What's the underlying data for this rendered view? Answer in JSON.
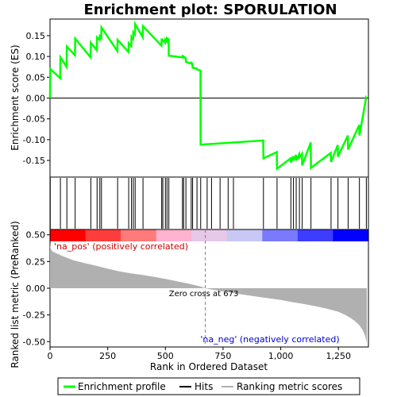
{
  "chart_data": {
    "type": "line",
    "title": "Enrichment plot: SPORULATION",
    "top_panel": {
      "ylabel": "Enrichment score (ES)",
      "ylim": [
        -0.19,
        0.19
      ],
      "yticks": [
        -0.15,
        -0.1,
        -0.05,
        0.0,
        0.05,
        0.1,
        0.15
      ],
      "ytick_labels": [
        "-0.15",
        "-0.10",
        "-0.05",
        "0.00",
        "0.05",
        "0.10",
        "0.15"
      ],
      "series": [
        {
          "name": "Enrichment profile",
          "color": "#00ff00",
          "x": [
            0,
            1,
            44,
            45,
            72,
            73,
            108,
            109,
            176,
            177,
            203,
            204,
            215,
            216,
            222,
            223,
            292,
            293,
            340,
            341,
            352,
            353,
            360,
            361,
            368,
            369,
            402,
            403,
            483,
            484,
            488,
            489,
            499,
            500,
            506,
            507,
            514,
            515,
            573,
            574,
            578,
            579,
            588,
            589,
            611,
            612,
            617,
            618,
            636,
            637,
            652,
            653,
            924,
            925,
            983,
            984,
            1043,
            1044,
            1054,
            1055,
            1066,
            1067,
            1080,
            1081,
            1092,
            1093,
            1130,
            1131,
            1217,
            1218,
            1247,
            1248,
            1291,
            1292,
            1340,
            1341,
            1370,
            1371
          ],
          "y": [
            0.0,
            0.07,
            0.048,
            0.098,
            0.075,
            0.124,
            0.103,
            0.143,
            0.098,
            0.133,
            0.115,
            0.146,
            0.14,
            0.149,
            0.145,
            0.17,
            0.113,
            0.14,
            0.111,
            0.132,
            0.125,
            0.147,
            0.142,
            0.158,
            0.153,
            0.178,
            0.146,
            0.173,
            0.126,
            0.14,
            0.138,
            0.14,
            0.133,
            0.141,
            0.137,
            0.144,
            0.141,
            0.102,
            0.098,
            0.1,
            0.098,
            0.1,
            0.096,
            0.087,
            0.083,
            0.085,
            0.083,
            0.073,
            0.071,
            0.069,
            0.066,
            -0.112,
            -0.102,
            -0.145,
            -0.13,
            -0.17,
            -0.145,
            -0.155,
            -0.14,
            -0.15,
            -0.137,
            -0.15,
            -0.135,
            -0.143,
            -0.134,
            -0.162,
            -0.107,
            -0.168,
            -0.132,
            -0.154,
            -0.113,
            -0.141,
            -0.09,
            -0.124,
            -0.065,
            -0.09,
            0.001,
            0.0
          ]
        }
      ]
    },
    "hits": {
      "name": "Hits",
      "x": [
        1,
        45,
        73,
        109,
        177,
        204,
        216,
        223,
        293,
        341,
        353,
        361,
        369,
        403,
        484,
        489,
        500,
        507,
        515,
        574,
        579,
        589,
        612,
        618,
        637,
        653,
        681,
        700,
        737,
        772,
        795,
        925,
        984,
        1044,
        1055,
        1067,
        1081,
        1093,
        1131,
        1218,
        1248,
        1292,
        1341,
        1371
      ]
    },
    "heat_bar": {
      "colors": [
        "#ff0000",
        "#ff3d3d",
        "#ff7a7a",
        "#ffb3cf",
        "#e6c8e8",
        "#c8c8f5",
        "#7a7aff",
        "#3d3dff",
        "#0000ff"
      ]
    },
    "bottom_panel": {
      "ylabel": "Ranked list metric (PreRanked)",
      "xlabel": "Rank in Ordered Dataset",
      "xlim": [
        0,
        1380
      ],
      "xticks": [
        0,
        250,
        500,
        750,
        1000,
        1250
      ],
      "xtick_labels": [
        "0",
        "250",
        "500",
        "750",
        "1,000",
        "1,250"
      ],
      "ylim": [
        -0.55,
        0.55
      ],
      "yticks": [
        -0.5,
        -0.25,
        0.0,
        0.25,
        0.5
      ],
      "ytick_labels": [
        "-0.50",
        "-0.25",
        "0.00",
        "0.25",
        "0.50"
      ],
      "series": [
        {
          "name": "Ranking metric scores",
          "color": "#b0b0b0",
          "x": [
            0,
            3,
            10,
            25,
            50,
            100,
            150,
            200,
            250,
            300,
            350,
            400,
            450,
            500,
            550,
            600,
            650,
            673,
            700,
            750,
            800,
            850,
            900,
            950,
            1000,
            1050,
            1100,
            1150,
            1200,
            1250,
            1280,
            1300,
            1320,
            1340,
            1355,
            1365,
            1372,
            1373
          ],
          "y": [
            0.41,
            0.37,
            0.345,
            0.33,
            0.305,
            0.262,
            0.235,
            0.21,
            0.183,
            0.158,
            0.14,
            0.125,
            0.107,
            0.088,
            0.065,
            0.042,
            0.018,
            0.0,
            -0.012,
            -0.03,
            -0.048,
            -0.064,
            -0.08,
            -0.095,
            -0.11,
            -0.13,
            -0.148,
            -0.168,
            -0.192,
            -0.22,
            -0.25,
            -0.275,
            -0.305,
            -0.345,
            -0.39,
            -0.44,
            -0.5,
            -0.55
          ]
        }
      ],
      "annotations": {
        "zero_cross": "Zero cross at 673",
        "zero_cross_x": 673,
        "pos_label": "'na_pos' (positively correlated)",
        "neg_label": "'na_neg' (negatively correlated)"
      }
    },
    "legend": {
      "placement": "bottom",
      "entries": [
        {
          "name": "Enrichment profile",
          "color": "#00ff00"
        },
        {
          "name": "Hits",
          "color": "#000000"
        },
        {
          "name": "Ranking metric scores",
          "color": "#b0b0b0"
        }
      ]
    },
    "colors": {
      "pos_label": "#cc0000",
      "neg_label": "#0000cc",
      "zero_line": "#808080"
    }
  }
}
